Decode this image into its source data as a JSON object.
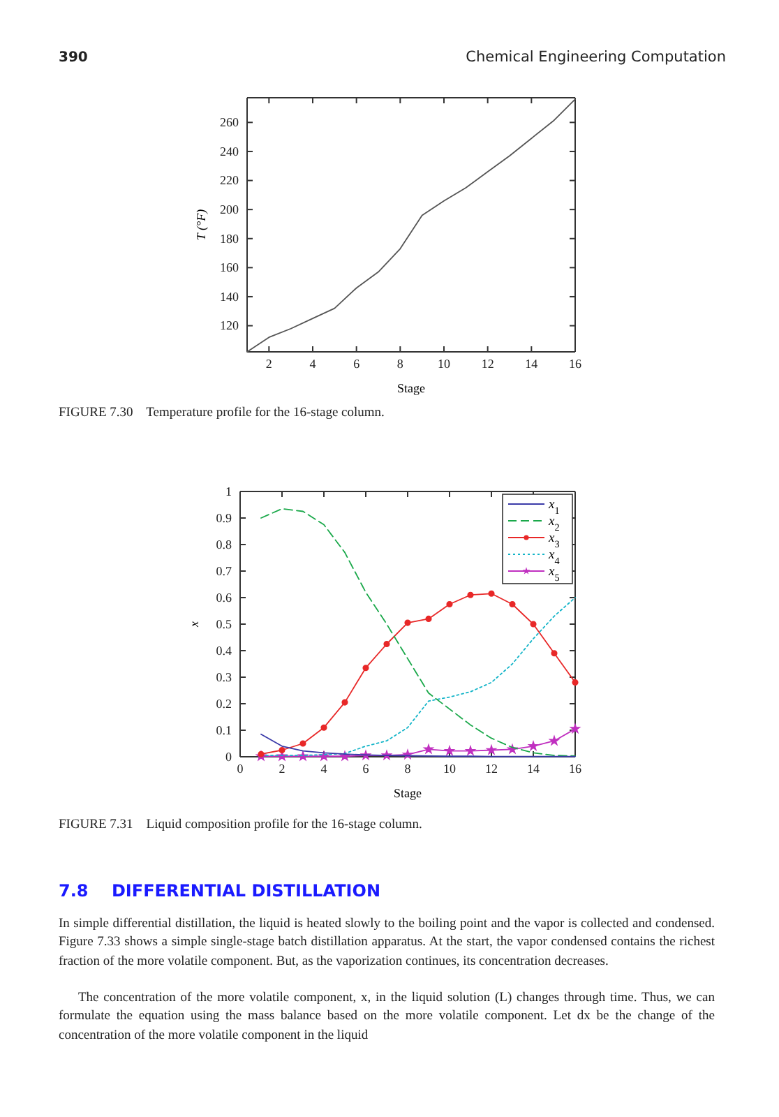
{
  "chart_data": [
    {
      "type": "line",
      "xlabel": "Stage",
      "ylabel": "T (°F)",
      "x": [
        1,
        2,
        3,
        4,
        5,
        6,
        7,
        8,
        9,
        10,
        11,
        12,
        13,
        14,
        15,
        16
      ],
      "series": [
        {
          "color": "#555555",
          "values": [
            102,
            112,
            118,
            125,
            132,
            146,
            157,
            173,
            196,
            206,
            215,
            226,
            237,
            249,
            261,
            276
          ]
        }
      ],
      "xlim": [
        1,
        16
      ],
      "ylim": [
        102,
        277
      ],
      "xticks": [
        2,
        4,
        6,
        8,
        10,
        12,
        14,
        16
      ],
      "yticks": [
        120,
        140,
        160,
        180,
        200,
        220,
        240,
        260
      ],
      "grid": false,
      "legend": false,
      "marker": "none",
      "line_style": "solid",
      "annotations": [
        "390",
        "Chemical Engineering Computation",
        "FIGURE 7.30    Temperature profile for the 16-stage column."
      ]
    },
    {
      "type": "line",
      "xlabel": "Stage",
      "ylabel": "x",
      "x": [
        1,
        2,
        3,
        4,
        5,
        6,
        7,
        8,
        9,
        10,
        11,
        12,
        13,
        14,
        15,
        16
      ],
      "series": [
        {
          "name": "x$_{1}$",
          "color": "#3a3aa8",
          "marker": "none",
          "line_style": "solid",
          "values": [
            0.085,
            0.04,
            0.022,
            0.015,
            0.01,
            0.007,
            0.005,
            0.004,
            0.003,
            0.002,
            0.002,
            0.001,
            0.001,
            0.001,
            0.001,
            0.001
          ]
        },
        {
          "name": "x$_{2}$",
          "color": "#1aa84a",
          "marker": "none",
          "line_style": "dashed",
          "values": [
            0.9,
            0.935,
            0.925,
            0.875,
            0.77,
            0.62,
            0.5,
            0.37,
            0.24,
            0.18,
            0.12,
            0.07,
            0.035,
            0.015,
            0.005,
            0.003
          ]
        },
        {
          "name": "x$_{3}$",
          "color": "#e82828",
          "marker": "circle",
          "line_style": "solid",
          "values": [
            0.01,
            0.025,
            0.05,
            0.11,
            0.205,
            0.335,
            0.425,
            0.505,
            0.52,
            0.575,
            0.61,
            0.615,
            0.575,
            0.5,
            0.39,
            0.28
          ]
        },
        {
          "name": "x$_{4}$",
          "color": "#12b4c8",
          "marker": "none",
          "line_style": "dotted",
          "values": [
            0.005,
            0.005,
            0.005,
            0.008,
            0.012,
            0.04,
            0.06,
            0.11,
            0.21,
            0.225,
            0.245,
            0.28,
            0.35,
            0.445,
            0.53,
            0.6
          ]
        },
        {
          "name": "x$_{5}$",
          "color": "#c030c0",
          "marker": "star",
          "line_style": "solid",
          "values": [
            0.002,
            0.002,
            0.002,
            0.002,
            0.002,
            0.005,
            0.005,
            0.008,
            0.028,
            0.022,
            0.022,
            0.025,
            0.028,
            0.04,
            0.06,
            0.105
          ]
        }
      ],
      "xlim": [
        0,
        16
      ],
      "ylim": [
        0,
        1
      ],
      "xticks": [
        0,
        2,
        4,
        6,
        8,
        10,
        12,
        14,
        16
      ],
      "yticks": [
        0,
        0.1,
        0.2,
        0.3,
        0.4,
        0.5,
        0.6,
        0.7,
        0.8,
        0.9,
        1
      ],
      "grid": false,
      "legend": "top right",
      "annotations": [
        "FIGURE 7.31    Liquid composition profile for the 16-stage column.",
        "7.8    DIFFERENTIAL DISTILLATION",
        "In simple differential distillation, the liquid is heated slowly to the boiling point and the vapor is collected and condensed. Figure 7.33 shows a simple single-stage batch distillation apparatus. At the start, the vapor condensed contains the richest fraction of the more volatile component. But, as the vaporization continues, its concentration decreases.",
        "The concentration of the more volatile component, x, in the liquid solution (L) changes through time. Thus, we can formulate the equation using the mass balance based on the more volatile component. Let dx be the change of the concentration of the more volatile component in the liquid"
      ]
    }
  ]
}
